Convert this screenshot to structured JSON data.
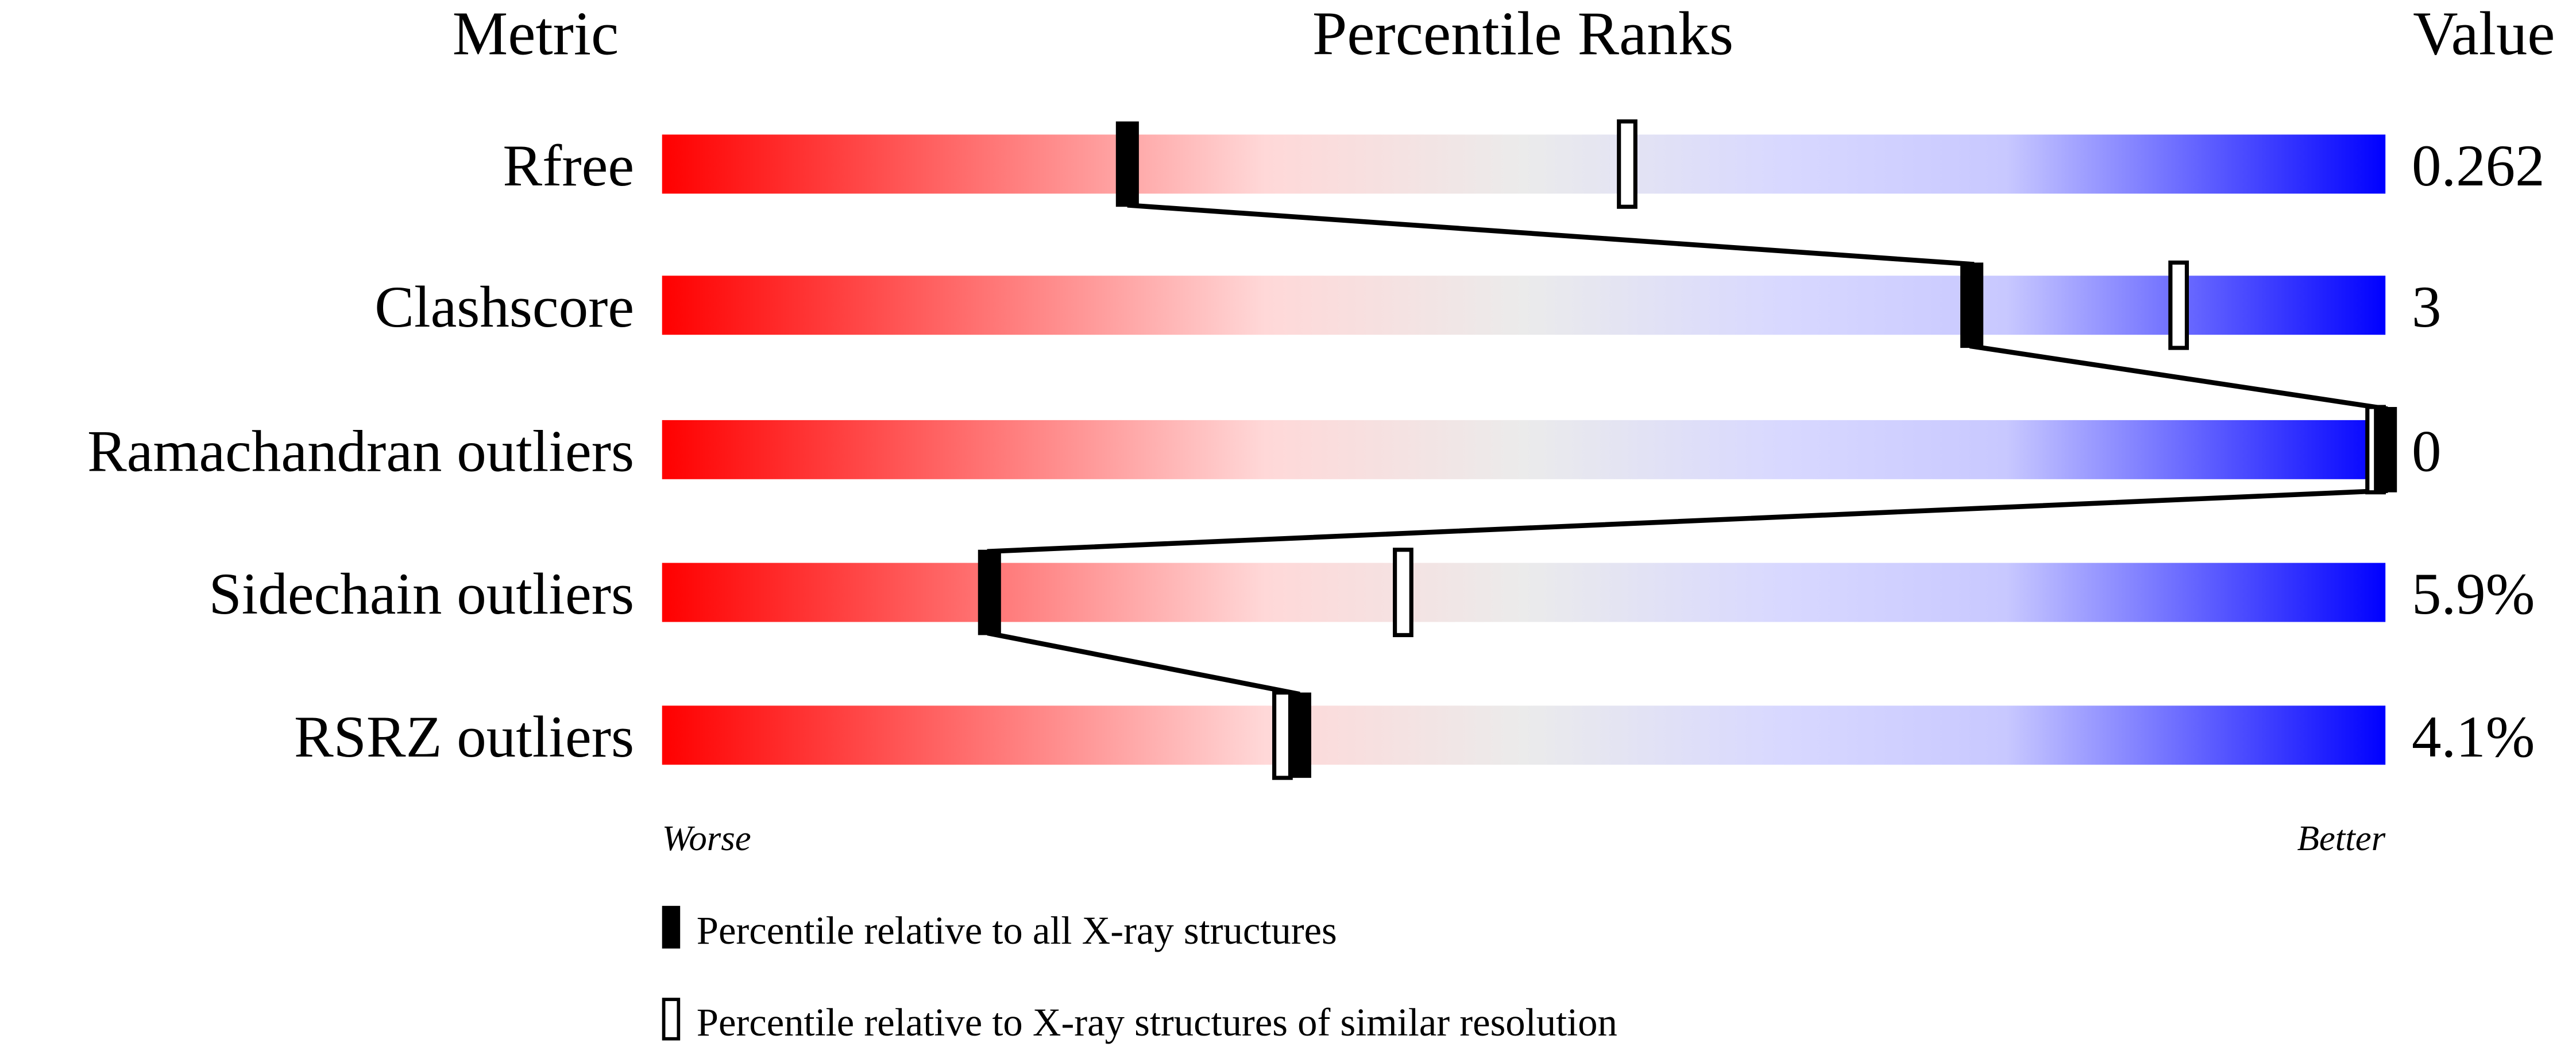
{
  "chart_data": {
    "type": "percentile-slider",
    "headers": {
      "metric": "Metric",
      "ranks": "Percentile Ranks",
      "value": "Value"
    },
    "xlim": [
      0,
      100
    ],
    "axis_labels": {
      "left": "Worse",
      "right": "Better"
    },
    "rows": [
      {
        "metric": "Rfree",
        "value": "0.262",
        "percentile_all": 27,
        "percentile_similar": 56
      },
      {
        "metric": "Clashscore",
        "value": "3",
        "percentile_all": 76,
        "percentile_similar": 88
      },
      {
        "metric": "Ramachandran outliers",
        "value": "0",
        "percentile_all": 100,
        "percentile_similar": 100
      },
      {
        "metric": "Sidechain outliers",
        "value": "5.9%",
        "percentile_all": 19,
        "percentile_similar": 43
      },
      {
        "metric": "RSRZ outliers",
        "value": "4.1%",
        "percentile_all": 37,
        "percentile_similar": 36
      }
    ],
    "legend": [
      {
        "marker": "filled",
        "label": "Percentile relative to all X-ray structures"
      },
      {
        "marker": "open",
        "label": "Percentile relative to X-ray structures of similar resolution"
      }
    ],
    "colors": {
      "worse": "#ff0000",
      "mid": "#ebebeb",
      "better": "#0000ff"
    }
  }
}
